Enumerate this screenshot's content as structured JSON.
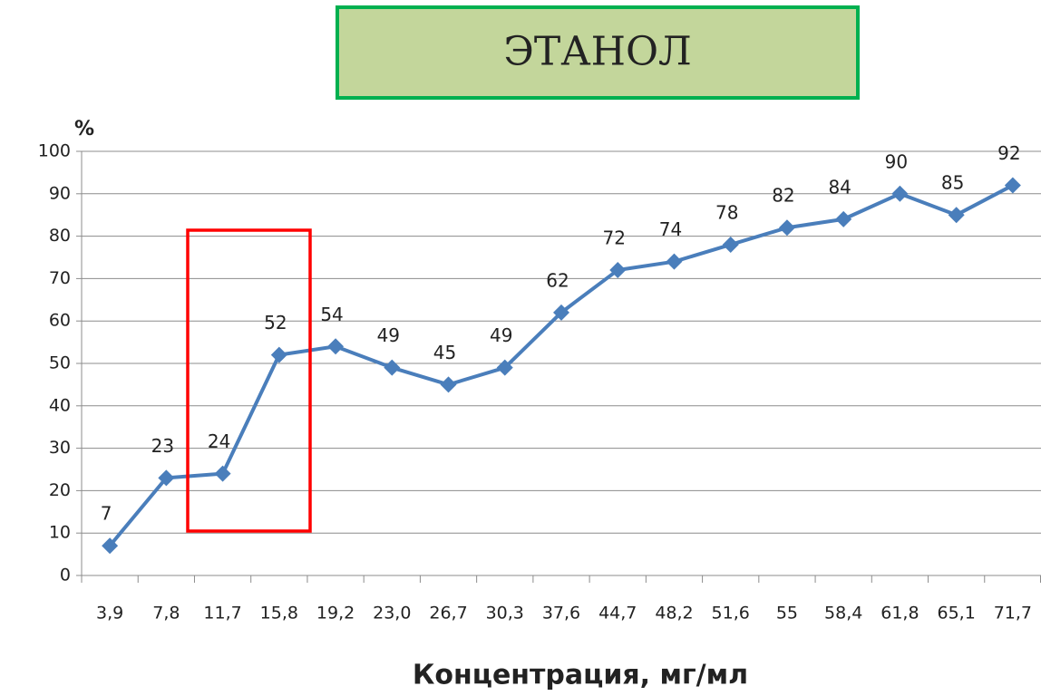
{
  "chart_data": {
    "type": "line",
    "title": "ЭТАНОЛ",
    "y_label": "%",
    "x_label": "Концентрация, мг/мл",
    "categories": [
      "3,9",
      "7,8",
      "11,7",
      "15,8",
      "19,2",
      "23,0",
      "26,7",
      "30,3",
      "37,6",
      "44,7",
      "48,2",
      "51,6",
      "55",
      "58,4",
      "61,8",
      "65,1",
      "71,7"
    ],
    "values": [
      7,
      23,
      24,
      52,
      54,
      49,
      45,
      49,
      62,
      72,
      74,
      78,
      82,
      84,
      90,
      85,
      92
    ],
    "color": "#4a7ebb",
    "ylim": [
      0,
      100
    ],
    "yticks": [
      0,
      10,
      20,
      30,
      40,
      50,
      60,
      70,
      80,
      90,
      100
    ],
    "grid": true
  }
}
